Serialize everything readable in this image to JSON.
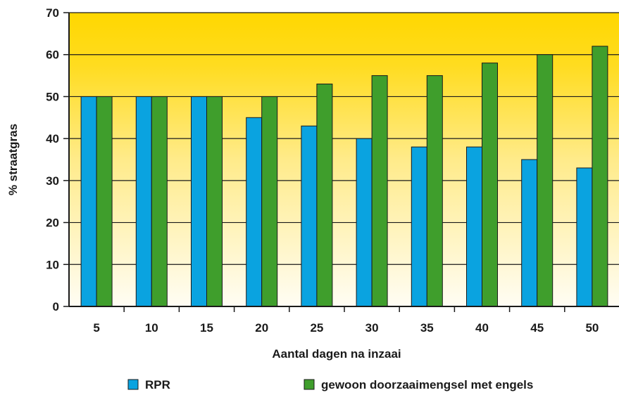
{
  "chart_data": {
    "type": "bar",
    "title": "",
    "xlabel": "Aantal dagen na inzaai",
    "ylabel": "% straatgras",
    "categories": [
      "5",
      "10",
      "15",
      "20",
      "25",
      "30",
      "35",
      "40",
      "45",
      "50"
    ],
    "series": [
      {
        "name": "RPR",
        "values": [
          50,
          50,
          50,
          45,
          43,
          40,
          38,
          38,
          35,
          33
        ]
      },
      {
        "name": "gewoon doorzaaimengsel met engels",
        "values": [
          50,
          50,
          50,
          50,
          53,
          55,
          55,
          58,
          60,
          62
        ]
      }
    ],
    "ylim": [
      0,
      70
    ],
    "yticks": [
      "0",
      "10",
      "20",
      "30",
      "40",
      "50",
      "60",
      "70"
    ],
    "grid": true,
    "legend_position": "bottom",
    "colors": {
      "series_1": "#0aa3e0",
      "series_2": "#3f9e2c",
      "background_top": "#ffd700",
      "background_bottom": "#fffdf4"
    }
  }
}
